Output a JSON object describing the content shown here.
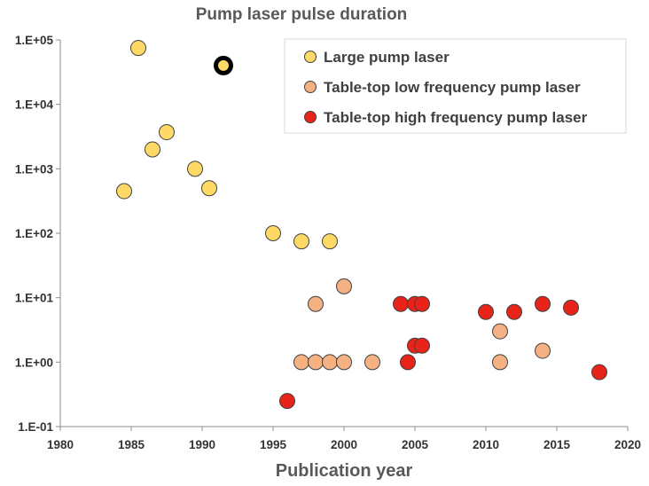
{
  "chart_data": {
    "type": "scatter",
    "title": "Pump laser pulse  duration",
    "xlabel": "Publication year",
    "ylabel": "",
    "xlim": [
      1980,
      2020
    ],
    "ylim": [
      0.1,
      100000
    ],
    "yscale": "log",
    "grid": false,
    "legend_position": "top-right",
    "x_ticks": [
      "1980",
      "1985",
      "1990",
      "1995",
      "2000",
      "2005",
      "2010",
      "2015",
      "2020"
    ],
    "y_ticks": [
      "1.E-01",
      "1.E+00",
      "1.E+01",
      "1.E+02",
      "1.E+03",
      "1.E+04",
      "1.E+05"
    ],
    "series": [
      {
        "name": "Large pump laser",
        "color": "#FFD966",
        "points": [
          {
            "x": 1985.5,
            "y": 75000
          },
          {
            "x": 1984.5,
            "y": 450
          },
          {
            "x": 1986.5,
            "y": 2000
          },
          {
            "x": 1987.5,
            "y": 3700
          },
          {
            "x": 1989.5,
            "y": 1000
          },
          {
            "x": 1990.5,
            "y": 500
          },
          {
            "x": 1995,
            "y": 100
          },
          {
            "x": 1997,
            "y": 75
          },
          {
            "x": 1999,
            "y": 75
          }
        ]
      },
      {
        "name": "Table-top low frequency pump laser",
        "color": "#F4B183",
        "points": [
          {
            "x": 2000,
            "y": 15
          },
          {
            "x": 1998,
            "y": 8
          },
          {
            "x": 1997,
            "y": 1
          },
          {
            "x": 1998,
            "y": 1
          },
          {
            "x": 1999,
            "y": 1
          },
          {
            "x": 2000,
            "y": 1
          },
          {
            "x": 2002,
            "y": 1
          },
          {
            "x": 2011,
            "y": 3
          },
          {
            "x": 2011,
            "y": 1
          },
          {
            "x": 2014,
            "y": 1.5
          }
        ]
      },
      {
        "name": "Table-top high frequency pump laser",
        "color": "#E8241A",
        "points": [
          {
            "x": 1996,
            "y": 0.25
          },
          {
            "x": 2004,
            "y": 8
          },
          {
            "x": 2005,
            "y": 8
          },
          {
            "x": 2005.5,
            "y": 8
          },
          {
            "x": 2004.5,
            "y": 1
          },
          {
            "x": 2005,
            "y": 1.8
          },
          {
            "x": 2005.5,
            "y": 1.8
          },
          {
            "x": 2010,
            "y": 6
          },
          {
            "x": 2012,
            "y": 6
          },
          {
            "x": 2014,
            "y": 8
          },
          {
            "x": 2016,
            "y": 7
          },
          {
            "x": 2018,
            "y": 0.7
          }
        ]
      }
    ],
    "highlighted_point": {
      "x": 1991.5,
      "y": 40000,
      "color": "#FFD966",
      "ring_color": "#000000"
    }
  }
}
